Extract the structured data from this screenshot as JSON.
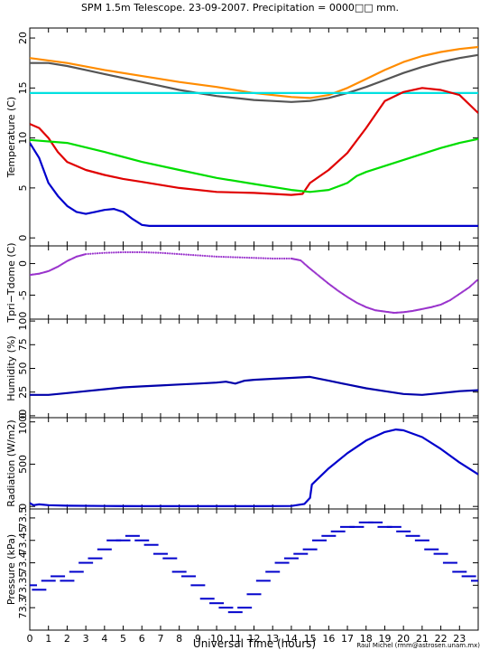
{
  "title": "SPM 1.5m Telescope. 23-09-2007. Precipitation = 0000□□ mm.",
  "credit": "Raul Michel (rmm@astrosen.unam.mx)",
  "chart_data": {
    "x_axis": {
      "label": "Universal Time (hours)",
      "range": [
        0,
        24
      ],
      "ticks": [
        0,
        1,
        2,
        3,
        4,
        5,
        6,
        7,
        8,
        9,
        10,
        11,
        12,
        13,
        14,
        15,
        16,
        17,
        18,
        19,
        20,
        21,
        22,
        23
      ]
    },
    "panels": [
      {
        "type": "line",
        "ylabel": "Temperature (C)",
        "ylim": [
          -0.8,
          21
        ],
        "yticks": [
          0,
          5,
          10,
          15,
          20
        ],
        "series": [
          {
            "color": "#ff8c00",
            "mode": "line",
            "x": [
              0,
              2,
              4,
              6,
              8,
              10,
              12,
              14,
              15,
              16,
              17,
              18,
              19,
              20,
              21,
              22,
              23,
              24
            ],
            "y": [
              18,
              17.5,
              16.8,
              16.2,
              15.6,
              15.1,
              14.5,
              14.1,
              14.0,
              14.3,
              15.0,
              15.9,
              16.8,
              17.6,
              18.2,
              18.6,
              18.9,
              19.1
            ]
          },
          {
            "color": "#555555",
            "mode": "line",
            "x": [
              0,
              1,
              2,
              3,
              4,
              5,
              6,
              7,
              8,
              9,
              10,
              11,
              12,
              13,
              14,
              15,
              16,
              17,
              18,
              19,
              20,
              21,
              22,
              23,
              24
            ],
            "y": [
              17.5,
              17.5,
              17.2,
              16.8,
              16.4,
              16.0,
              15.6,
              15.2,
              14.8,
              14.5,
              14.2,
              14.0,
              13.8,
              13.7,
              13.6,
              13.7,
              14.0,
              14.5,
              15.1,
              15.8,
              16.5,
              17.1,
              17.6,
              18.0,
              18.3
            ]
          },
          {
            "color": "#00e0e0",
            "mode": "line",
            "x": [
              0,
              24
            ],
            "y": [
              14.5,
              14.5
            ]
          },
          {
            "color": "#e00000",
            "mode": "line",
            "x": [
              0,
              0.5,
              1,
              1.5,
              2,
              3,
              4,
              5,
              6,
              8,
              10,
              12,
              13,
              14,
              14.6,
              15,
              16,
              17,
              18,
              19,
              20,
              21,
              22,
              23,
              24
            ],
            "y": [
              11.4,
              11.0,
              10.0,
              8.6,
              7.6,
              6.8,
              6.3,
              5.9,
              5.6,
              5.0,
              4.6,
              4.5,
              4.4,
              4.3,
              4.4,
              5.5,
              6.8,
              8.5,
              11.0,
              13.7,
              14.6,
              15.0,
              14.8,
              14.3,
              12.5
            ]
          },
          {
            "color": "#00dd00",
            "mode": "line",
            "x": [
              0,
              2,
              4,
              6,
              8,
              10,
              12,
              14,
              15,
              16,
              17,
              17.5,
              18,
              19,
              20,
              21,
              22,
              23,
              24
            ],
            "y": [
              9.8,
              9.5,
              8.6,
              7.6,
              6.8,
              6.0,
              5.4,
              4.8,
              4.6,
              4.8,
              5.5,
              6.2,
              6.6,
              7.2,
              7.8,
              8.4,
              9.0,
              9.5,
              9.9
            ]
          },
          {
            "color": "#0000cc",
            "mode": "line",
            "x": [
              0,
              0.5,
              1,
              1.5,
              2,
              2.5,
              3,
              3.5,
              4,
              4.5,
              5,
              5.5,
              6,
              6.4,
              7,
              10,
              14,
              18,
              22,
              24
            ],
            "y": [
              9.5,
              8.0,
              5.5,
              4.2,
              3.2,
              2.6,
              2.4,
              2.6,
              2.8,
              2.9,
              2.6,
              1.9,
              1.3,
              1.2,
              1.2,
              1.2,
              1.2,
              1.2,
              1.2,
              1.2
            ]
          }
        ]
      },
      {
        "type": "scatter",
        "ylabel": "Tpri−Tdome (C)",
        "ylim": [
          -8.8,
          2.8
        ],
        "yticks": [
          0,
          -5
        ],
        "series": [
          {
            "color": "#9933cc",
            "mode": "dots",
            "x": [
              0,
              0.5,
              1,
              1.5,
              2,
              2.5,
              3,
              4,
              5,
              6,
              7,
              8,
              9,
              10,
              11,
              12,
              13,
              14,
              14.5,
              15,
              15.5,
              16,
              16.5,
              17,
              17.5,
              18,
              18.5,
              19,
              19.5,
              20,
              20.5,
              21,
              21.5,
              22,
              22.5,
              23,
              23.5,
              24
            ],
            "y": [
              -1.8,
              -1.6,
              -1.2,
              -0.5,
              0.4,
              1.1,
              1.5,
              1.7,
              1.8,
              1.8,
              1.7,
              1.5,
              1.3,
              1.1,
              1.0,
              0.9,
              0.8,
              0.8,
              0.5,
              -0.8,
              -2.0,
              -3.2,
              -4.3,
              -5.3,
              -6.2,
              -6.9,
              -7.4,
              -7.6,
              -7.8,
              -7.7,
              -7.5,
              -7.2,
              -6.9,
              -6.5,
              -5.8,
              -4.8,
              -3.8,
              -2.5
            ]
          }
        ]
      },
      {
        "type": "line",
        "ylabel": "Humidity (%)",
        "ylim": [
          -2,
          102
        ],
        "yticks": [
          0,
          25,
          50,
          75,
          100
        ],
        "series": [
          {
            "color": "#0000aa",
            "mode": "line",
            "x": [
              0,
              1,
              2,
              3,
              4,
              5,
              6,
              7,
              8,
              9,
              10,
              10.5,
              11,
              11.5,
              12,
              13,
              14,
              15,
              16,
              17,
              18,
              19,
              20,
              21,
              22,
              23,
              24
            ],
            "y": [
              22,
              22,
              24,
              26,
              28,
              30,
              31,
              32,
              33,
              34,
              35,
              36,
              34,
              37,
              38,
              39,
              40,
              41,
              37,
              33,
              29,
              26,
              23,
              22,
              24,
              26,
              27
            ]
          }
        ]
      },
      {
        "type": "line",
        "ylabel": "Radiation (W/m2)",
        "ylim": [
          -30,
          1050
        ],
        "yticks": [
          0,
          500,
          1000
        ],
        "series": [
          {
            "color": "#0000cc",
            "mode": "line",
            "x": [
              0,
              0.2,
              0.5,
              1,
              2,
              4,
              6,
              8,
              10,
              12,
              14,
              14.7,
              15,
              15.1,
              16,
              17,
              18,
              19,
              19.6,
              20,
              21,
              22,
              23,
              24
            ],
            "y": [
              40,
              15,
              25,
              15,
              8,
              5,
              3,
              3,
              3,
              3,
              5,
              30,
              100,
              260,
              450,
              630,
              780,
              880,
              910,
              900,
              820,
              680,
              520,
              380
            ]
          }
        ]
      },
      {
        "type": "scatter",
        "ylabel": "Pressure (kPa)",
        "ylim": [
          73.25,
          73.52
        ],
        "ytick_labels": [
          "73.3",
          "73.35",
          "73.4",
          "73.45",
          "73.5"
        ],
        "series": [
          {
            "color": "#0000cc",
            "mode": "steps",
            "x": [
              0,
              0.5,
              1,
              1.5,
              2,
              2.5,
              3,
              3.5,
              4,
              4.5,
              5,
              5.5,
              6,
              6.5,
              7,
              7.5,
              8,
              8.5,
              9,
              9.5,
              10,
              10.5,
              11,
              11.5,
              12,
              12.5,
              13,
              13.5,
              14,
              14.5,
              15,
              15.5,
              16,
              16.5,
              17,
              17.5,
              18,
              18.5,
              19,
              19.5,
              20,
              20.5,
              21,
              21.5,
              22,
              22.5,
              23,
              23.5,
              24
            ],
            "y": [
              73.35,
              73.34,
              73.36,
              73.37,
              73.36,
              73.38,
              73.4,
              73.41,
              73.43,
              73.45,
              73.45,
              73.46,
              73.45,
              73.44,
              73.42,
              73.41,
              73.38,
              73.37,
              73.35,
              73.32,
              73.31,
              73.3,
              73.29,
              73.3,
              73.33,
              73.36,
              73.38,
              73.4,
              73.41,
              73.42,
              73.43,
              73.45,
              73.46,
              73.47,
              73.48,
              73.48,
              73.49,
              73.49,
              73.48,
              73.48,
              73.47,
              73.46,
              73.45,
              73.43,
              73.42,
              73.4,
              73.38,
              73.37,
              73.36
            ]
          }
        ]
      }
    ]
  }
}
